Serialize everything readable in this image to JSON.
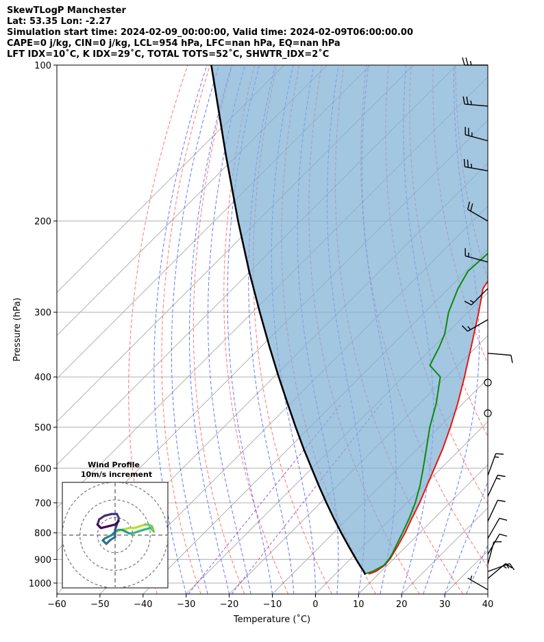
{
  "header": {
    "line1": "SkewTLogP Manchester",
    "line2": "Lat: 53.35   Lon: -2.27",
    "line3": "Simulation start time: 2024-02-09_00:00:00, Valid time: 2024-02-09T06:00:00.00",
    "line4": "CAPE=0 j/kg, CIN=0 j/kg, LCL=954 hPa, LFC=nan hPa, EQ=nan hPa",
    "line5": "LFT IDX=10˚C, K IDX=29˚C, TOTAL TOTS=52˚C, SHWTR_IDX=2˚C"
  },
  "colors": {
    "temperature": "#e8140e",
    "dewpoint": "#0a8a0a",
    "parcel": "#000000",
    "cape_fill": "#7fb0d5",
    "isotherm": "#a8a8a8",
    "dry_adiabat": "#ff5a5a",
    "moist_adiabat": "#4a5dff",
    "mixing_ratio": "#9b55d0"
  },
  "chart_data": [
    {
      "type": "line",
      "title": "",
      "xlabel": "Temperature (˚C)",
      "ylabel": "Pressure (hPa)",
      "xlim": [
        -60,
        40
      ],
      "ylim": [
        1050,
        100
      ],
      "yscale": "log",
      "skew": "45-degree",
      "grid": true,
      "legend": "none",
      "x_ticks": [
        "−60",
        "−50",
        "−40",
        "−30",
        "−20",
        "−10",
        "0",
        "10",
        "20",
        "30",
        "40"
      ],
      "x_tick_values": [
        -60,
        -50,
        -40,
        -30,
        -20,
        -10,
        0,
        10,
        20,
        30,
        40
      ],
      "y_ticks": [
        "100",
        "200",
        "300",
        "400",
        "500",
        "600",
        "700",
        "800",
        "900",
        "1000"
      ],
      "y_tick_values": [
        100,
        200,
        300,
        400,
        500,
        600,
        700,
        800,
        900,
        1000
      ],
      "background_lines": {
        "isotherms_c": [
          -130,
          -120,
          -110,
          -100,
          -90,
          -80,
          -70,
          -60,
          -50,
          -40,
          -30,
          -20,
          -10,
          0,
          10,
          20,
          30,
          40
        ],
        "dry_adiabats_c": [
          -40,
          -30,
          -20,
          -10,
          0,
          10,
          20,
          30,
          40,
          50,
          60,
          70,
          80
        ],
        "moist_adiabats_c": [
          -30,
          -25,
          -20,
          -15,
          -10,
          -5,
          0,
          5,
          10,
          15,
          20,
          25,
          30,
          35
        ],
        "mixing_ratio_c_at_1000": [
          -30,
          -20
        ]
      },
      "series": [
        {
          "key": "temperature",
          "pressure": [
            960,
            950,
            925,
            900,
            875,
            850,
            800,
            750,
            700,
            650,
            600,
            550,
            500,
            450,
            400,
            350,
            300,
            270,
            255,
            240,
            220,
            200,
            180,
            160,
            140,
            120,
            100
          ],
          "values": [
            7.8,
            8.8,
            9.4,
            9.2,
            8.6,
            8.0,
            6.6,
            4.8,
            3.0,
            0.8,
            -1.6,
            -4.2,
            -7.4,
            -11.2,
            -15.8,
            -21.2,
            -27.5,
            -32.0,
            -33.0,
            -34.2,
            -37.0,
            -40.0,
            -43.8,
            -48.5,
            -54.0,
            -60.5,
            -68.0
          ]
        },
        {
          "key": "dewpoint",
          "pressure": [
            960,
            950,
            925,
            900,
            875,
            850,
            800,
            750,
            700,
            650,
            600,
            550,
            500,
            450,
            400,
            380,
            350,
            330,
            300,
            270,
            250,
            230,
            210,
            200,
            190,
            180,
            160,
            140,
            120,
            100
          ],
          "values": [
            6.8,
            8.0,
            9.2,
            9.0,
            8.4,
            7.6,
            6.0,
            4.2,
            2.0,
            -0.8,
            -4.2,
            -8.0,
            -12.2,
            -16.2,
            -21.4,
            -26.5,
            -28.6,
            -30.4,
            -34.5,
            -37.8,
            -39.5,
            -39.0,
            -37.8,
            -39.2,
            -44.5,
            -50.0,
            -54.0,
            -58.5,
            -64.0,
            -70.0
          ]
        },
        {
          "key": "parcel",
          "pressure": [
            960,
            950,
            925,
            900,
            850,
            800,
            750,
            700,
            650,
            600,
            550,
            500,
            450,
            400,
            350,
            300,
            250,
            200,
            150,
            100
          ],
          "values": [
            6.8,
            6.0,
            3.7,
            1.4,
            -3.3,
            -8.2,
            -13.3,
            -18.6,
            -24.2,
            -30.1,
            -36.5,
            -43.3,
            -50.7,
            -58.9,
            -68.0,
            -78.3,
            -90.3,
            -104.5,
            -122.3,
            -146.9
          ]
        }
      ],
      "wind_barbs": [
        {
          "pressure": 100,
          "speed_kt": 25,
          "direction_deg": 270
        },
        {
          "pressure": 120,
          "speed_kt": 25,
          "direction_deg": 275
        },
        {
          "pressure": 140,
          "speed_kt": 25,
          "direction_deg": 285
        },
        {
          "pressure": 160,
          "speed_kt": 25,
          "direction_deg": 280
        },
        {
          "pressure": 200,
          "speed_kt": 20,
          "direction_deg": 300
        },
        {
          "pressure": 240,
          "speed_kt": 15,
          "direction_deg": 285
        },
        {
          "pressure": 270,
          "speed_kt": 15,
          "direction_deg": 225
        },
        {
          "pressure": 310,
          "speed_kt": 15,
          "direction_deg": 240
        },
        {
          "pressure": 360,
          "speed_kt": 10,
          "direction_deg": 95
        },
        {
          "pressure": 410,
          "speed_kt": 0,
          "direction_deg": 0
        },
        {
          "pressure": 470,
          "speed_kt": 0,
          "direction_deg": 0
        },
        {
          "pressure": 620,
          "speed_kt": 15,
          "direction_deg": 20
        },
        {
          "pressure": 680,
          "speed_kt": 15,
          "direction_deg": 25
        },
        {
          "pressure": 760,
          "speed_kt": 10,
          "direction_deg": 25
        },
        {
          "pressure": 820,
          "speed_kt": 10,
          "direction_deg": 30
        },
        {
          "pressure": 880,
          "speed_kt": 10,
          "direction_deg": 30
        },
        {
          "pressure": 920,
          "speed_kt": 10,
          "direction_deg": 15
        },
        {
          "pressure": 950,
          "speed_kt": 15,
          "direction_deg": 70
        },
        {
          "pressure": 980,
          "speed_kt": 15,
          "direction_deg": 50
        },
        {
          "pressure": 1030,
          "speed_kt": 5,
          "direction_deg": 300
        }
      ]
    },
    {
      "type": "scatter",
      "title": "Wind Profile",
      "subtitle": "10m/s increment",
      "ring_increment_ms": 10,
      "rings": 3,
      "xlim": [
        -30,
        30
      ],
      "ylim": [
        -30,
        30
      ],
      "u": [
        1,
        4,
        8,
        11,
        14,
        17,
        19,
        21,
        22,
        20,
        16,
        13,
        10,
        8,
        6,
        4,
        2,
        0,
        -2,
        -4,
        -6,
        -7,
        -5,
        -3,
        0,
        0,
        1,
        2,
        2,
        1,
        -2,
        -6,
        -9,
        -10,
        -8,
        -4,
        0,
        2
      ],
      "v": [
        2,
        3,
        4,
        4,
        5,
        6,
        6,
        5,
        2,
        4,
        3,
        2,
        1,
        1,
        2,
        3,
        3,
        2,
        0,
        -1,
        -2,
        -3,
        -5,
        -3,
        -1,
        3,
        6,
        9,
        10,
        12,
        12,
        11,
        9,
        6,
        4,
        5,
        6,
        8
      ],
      "colormap": "viridis"
    }
  ]
}
